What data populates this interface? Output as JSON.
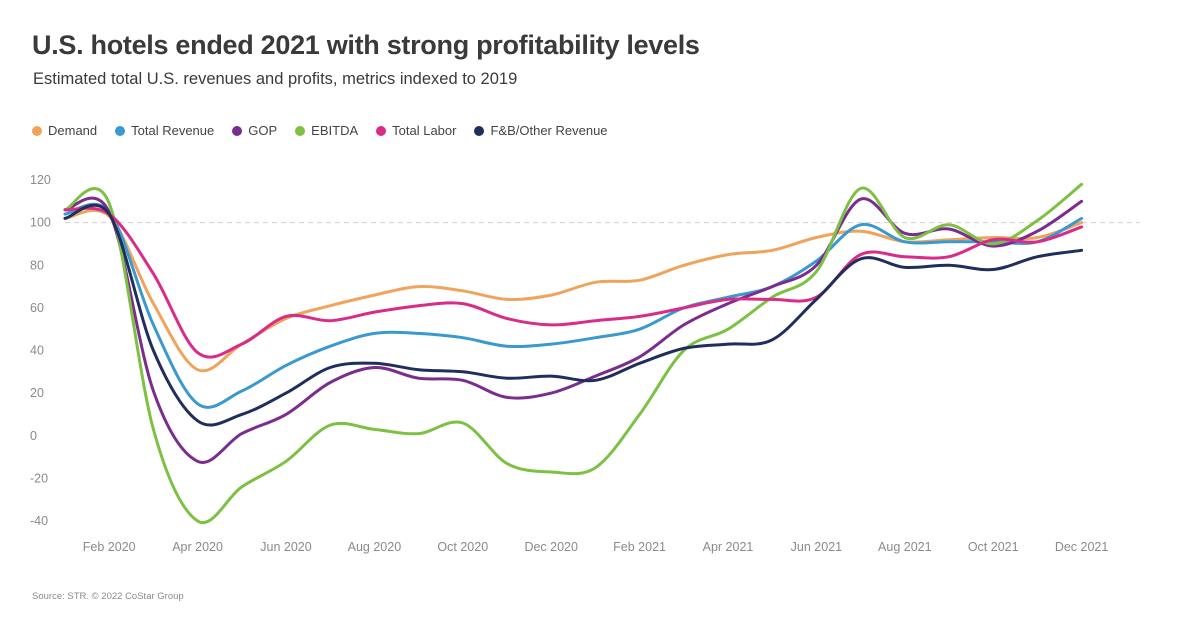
{
  "header": {
    "title": "U.S. hotels ended 2021 with strong profitability levels",
    "subtitle": "Estimated total U.S. revenues and profits, metrics indexed to 2019"
  },
  "footer": {
    "source": "Source: STR. © 2022 CoStar Group"
  },
  "chart_data": {
    "type": "line",
    "title": "U.S. hotels ended 2021 with strong profitability levels",
    "subtitle": "Estimated total U.S. revenues and profits, metrics indexed to 2019",
    "xlabel": "",
    "ylabel": "",
    "ylim": [
      -40,
      120
    ],
    "yticks": [
      120,
      100,
      80,
      60,
      40,
      20,
      0,
      -20,
      -40
    ],
    "reference_line": 100,
    "legend_position": "top-left",
    "x": [
      "Jan 2020",
      "Feb 2020",
      "Mar 2020",
      "Apr 2020",
      "May 2020",
      "Jun 2020",
      "Jul 2020",
      "Aug 2020",
      "Sep 2020",
      "Oct 2020",
      "Nov 2020",
      "Dec 2020",
      "Jan 2021",
      "Feb 2021",
      "Mar 2021",
      "Apr 2021",
      "May 2021",
      "Jun 2021",
      "Jul 2021",
      "Aug 2021",
      "Sep 2021",
      "Oct 2021",
      "Nov 2021",
      "Dec 2021"
    ],
    "xtick_labels": [
      "Feb 2020",
      "Apr 2020",
      "Jun 2020",
      "Aug 2020",
      "Oct 2020",
      "Dec 2020",
      "Feb 2021",
      "Apr 2021",
      "Jun 2021",
      "Aug 2021",
      "Oct 2021",
      "Dec 2021"
    ],
    "series": [
      {
        "name": "Demand",
        "color": "#f0a45b",
        "values": [
          102,
          103,
          62,
          31,
          43,
          55,
          61,
          66,
          70,
          68,
          64,
          66,
          72,
          73,
          80,
          85,
          87,
          93,
          96,
          91,
          92,
          93,
          93,
          100
        ]
      },
      {
        "name": "Total Revenue",
        "color": "#3a99cf",
        "values": [
          104,
          105,
          52,
          15,
          21,
          33,
          42,
          48,
          48,
          46,
          42,
          43,
          46,
          50,
          60,
          65,
          70,
          82,
          99,
          91,
          91,
          91,
          91,
          102
        ]
      },
      {
        "name": "GOP",
        "color": "#7b2d8e",
        "values": [
          106,
          105,
          21,
          -12,
          1,
          10,
          25,
          32,
          27,
          26,
          18,
          20,
          28,
          37,
          52,
          62,
          70,
          80,
          111,
          95,
          97,
          89,
          96,
          110
        ]
      },
      {
        "name": "EBITDA",
        "color": "#7dc044",
        "values": [
          106,
          109,
          3,
          -40,
          -24,
          -12,
          5,
          3,
          1,
          6,
          -13,
          -17,
          -15,
          10,
          40,
          50,
          65,
          77,
          116,
          93,
          99,
          90,
          101,
          118
        ]
      },
      {
        "name": "Total Labor",
        "color": "#d92c88",
        "values": [
          106,
          104,
          76,
          39,
          43,
          56,
          54,
          58,
          61,
          62,
          55,
          52,
          54,
          56,
          60,
          64,
          64,
          65,
          85,
          84,
          84,
          92,
          91,
          98
        ]
      },
      {
        "name": "F&B/Other Revenue",
        "color": "#1f2e5c",
        "values": [
          102,
          104,
          40,
          7,
          10,
          20,
          32,
          34,
          31,
          30,
          27,
          28,
          26,
          34,
          41,
          43,
          45,
          64,
          83,
          79,
          80,
          78,
          84,
          87
        ]
      }
    ]
  }
}
